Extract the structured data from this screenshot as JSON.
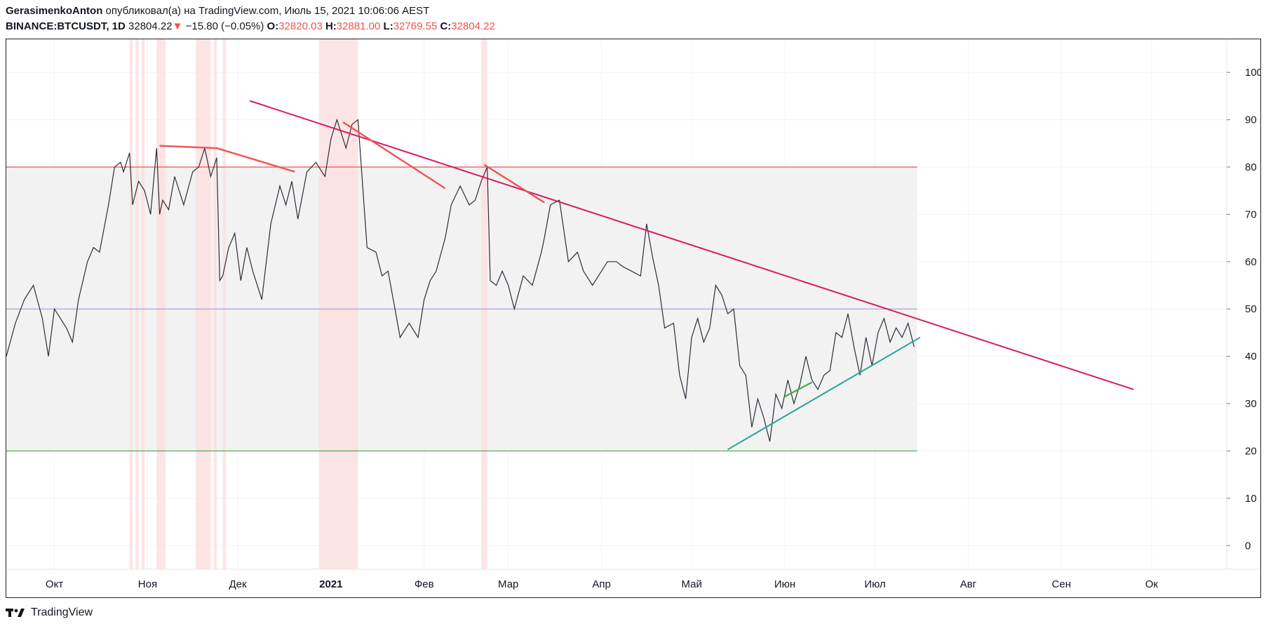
{
  "header": {
    "author": "GerasimenkoAnton",
    "published": "опубликовал(а) на TradingView.com, Июль 15, 2021 10:06:06 AEST",
    "symbol": "BINANCE:BTCUSDT, 1D",
    "price": "32804.22",
    "change_arrow": "▼",
    "change": "−15.80 (−0.05%)",
    "o_label": "O:",
    "o_value": "32820.03",
    "h_label": "H:",
    "h_value": "32881.00",
    "l_label": "L:",
    "l_value": "32769.55",
    "c_label": "C:",
    "c_value": "32804.22"
  },
  "footer": {
    "brand": "TradingView"
  },
  "colors": {
    "price_line": "#2a2e39",
    "downtrend": "#d81b60",
    "uptrend": "#26a69a",
    "divergence": "#ef5350",
    "bull_div": "#4caf50",
    "level_80": "#ef5350",
    "level_50": "#9fa8da",
    "level_20": "#4caf50",
    "band_fill": "#f2f2f2",
    "highlight": "#fde0e0"
  },
  "chart_data": {
    "type": "line",
    "title": "",
    "xlabel": "",
    "ylabel": "",
    "ylim": [
      -5,
      107
    ],
    "xlim": [
      "2020-09-15",
      "2021-10-26"
    ],
    "y_ticks": [
      0,
      10,
      20,
      30,
      40,
      50,
      60,
      70,
      80,
      90,
      100
    ],
    "x_ticks": [
      {
        "label": "Окт",
        "date": "2020-10-01"
      },
      {
        "label": "Ноя",
        "date": "2020-11-01"
      },
      {
        "label": "Дек",
        "date": "2020-12-01"
      },
      {
        "label": "2021",
        "date": "2021-01-01",
        "bold": true
      },
      {
        "label": "Фев",
        "date": "2021-02-01"
      },
      {
        "label": "Мар",
        "date": "2021-03-01"
      },
      {
        "label": "Апр",
        "date": "2021-04-01"
      },
      {
        "label": "Май",
        "date": "2021-05-01"
      },
      {
        "label": "Июн",
        "date": "2021-06-01"
      },
      {
        "label": "Июл",
        "date": "2021-07-01"
      },
      {
        "label": "Авг",
        "date": "2021-08-01"
      },
      {
        "label": "Сен",
        "date": "2021-09-01"
      },
      {
        "label": "Ок",
        "date": "2021-10-01"
      }
    ],
    "levels": [
      80,
      50,
      20
    ],
    "band": [
      20,
      80
    ],
    "band_end": "2021-07-15",
    "highlights": [
      [
        "2020-10-26",
        "2020-10-27"
      ],
      [
        "2020-10-28",
        "2020-10-29"
      ],
      [
        "2020-10-30",
        "2020-10-31"
      ],
      [
        "2020-11-04",
        "2020-11-07"
      ],
      [
        "2020-11-17",
        "2020-11-22"
      ],
      [
        "2020-11-23",
        "2020-11-24"
      ],
      [
        "2020-11-26",
        "2020-11-27"
      ],
      [
        "2020-12-28",
        "2021-01-10"
      ],
      [
        "2021-02-20",
        "2021-02-22"
      ]
    ],
    "x": [
      "2020-09-15",
      "2020-09-18",
      "2020-09-21",
      "2020-09-24",
      "2020-09-27",
      "2020-09-29",
      "2020-10-01",
      "2020-10-03",
      "2020-10-05",
      "2020-10-07",
      "2020-10-09",
      "2020-10-12",
      "2020-10-14",
      "2020-10-16",
      "2020-10-19",
      "2020-10-21",
      "2020-10-23",
      "2020-10-24",
      "2020-10-26",
      "2020-10-27",
      "2020-10-29",
      "2020-10-31",
      "2020-11-02",
      "2020-11-04",
      "2020-11-05",
      "2020-11-06",
      "2020-11-08",
      "2020-11-10",
      "2020-11-13",
      "2020-11-16",
      "2020-11-18",
      "2020-11-20",
      "2020-11-22",
      "2020-11-24",
      "2020-11-25",
      "2020-11-26",
      "2020-11-28",
      "2020-11-30",
      "2020-12-02",
      "2020-12-04",
      "2020-12-06",
      "2020-12-09",
      "2020-12-12",
      "2020-12-15",
      "2020-12-17",
      "2020-12-19",
      "2020-12-21",
      "2020-12-24",
      "2020-12-27",
      "2020-12-30",
      "2021-01-01",
      "2021-01-03",
      "2021-01-05",
      "2021-01-06",
      "2021-01-08",
      "2021-01-10",
      "2021-01-11",
      "2021-01-13",
      "2021-01-16",
      "2021-01-18",
      "2021-01-20",
      "2021-01-22",
      "2021-01-24",
      "2021-01-27",
      "2021-01-30",
      "2021-02-01",
      "2021-02-03",
      "2021-02-05",
      "2021-02-08",
      "2021-02-10",
      "2021-02-13",
      "2021-02-16",
      "2021-02-18",
      "2021-02-20",
      "2021-02-22",
      "2021-02-23",
      "2021-02-25",
      "2021-02-27",
      "2021-03-01",
      "2021-03-03",
      "2021-03-06",
      "2021-03-09",
      "2021-03-12",
      "2021-03-13",
      "2021-03-15",
      "2021-03-18",
      "2021-03-21",
      "2021-03-24",
      "2021-03-26",
      "2021-03-29",
      "2021-04-01",
      "2021-04-03",
      "2021-04-06",
      "2021-04-08",
      "2021-04-11",
      "2021-04-14",
      "2021-04-16",
      "2021-04-18",
      "2021-04-20",
      "2021-04-22",
      "2021-04-25",
      "2021-04-27",
      "2021-04-29",
      "2021-05-01",
      "2021-05-03",
      "2021-05-05",
      "2021-05-07",
      "2021-05-09",
      "2021-05-11",
      "2021-05-13",
      "2021-05-15",
      "2021-05-17",
      "2021-05-19",
      "2021-05-21",
      "2021-05-23",
      "2021-05-25",
      "2021-05-27",
      "2021-05-29",
      "2021-05-31",
      "2021-06-02",
      "2021-06-04",
      "2021-06-06",
      "2021-06-08",
      "2021-06-10",
      "2021-06-12",
      "2021-06-14",
      "2021-06-16",
      "2021-06-18",
      "2021-06-20",
      "2021-06-22",
      "2021-06-24",
      "2021-06-26",
      "2021-06-28",
      "2021-06-30",
      "2021-07-02",
      "2021-07-04",
      "2021-07-06",
      "2021-07-08",
      "2021-07-10",
      "2021-07-12",
      "2021-07-14"
    ],
    "series": [
      {
        "values": [
          40,
          47,
          52,
          55,
          48,
          40,
          50,
          48,
          46,
          43,
          52,
          60,
          63,
          62,
          72,
          80,
          81,
          79,
          83,
          72,
          77,
          75,
          70,
          84,
          70,
          73,
          71,
          78,
          72,
          79,
          80,
          84,
          78,
          82,
          56,
          57,
          63,
          66,
          56,
          63,
          58,
          52,
          68,
          76,
          72,
          77,
          69,
          79,
          81,
          78,
          86,
          90,
          86,
          84,
          89,
          90,
          81,
          63,
          62,
          57,
          58,
          51,
          44,
          47,
          44,
          52,
          56,
          58,
          65,
          72,
          76,
          72,
          73,
          77,
          80,
          56,
          55,
          58,
          55,
          50,
          57,
          55,
          62,
          65,
          72,
          73,
          60,
          62,
          58,
          55,
          58,
          60,
          60,
          59,
          58,
          57,
          68,
          61,
          55,
          46,
          47,
          36,
          31,
          44,
          48,
          43,
          46,
          55,
          53,
          49,
          50,
          38,
          36,
          25,
          31,
          27,
          22,
          32,
          29,
          35,
          30,
          34,
          40,
          35,
          33,
          36,
          37,
          45,
          44,
          49,
          42,
          36,
          44,
          38,
          45,
          48,
          43,
          46,
          44,
          47,
          42
        ]
      }
    ],
    "trendlines": [
      {
        "kind": "down",
        "from": [
          "2020-12-05",
          94
        ],
        "to": [
          "2021-09-25",
          33
        ]
      },
      {
        "kind": "up",
        "from": [
          "2021-05-13",
          20.3
        ],
        "to": [
          "2021-07-16",
          44
        ]
      },
      {
        "kind": "div",
        "from": [
          "2020-11-05",
          84.5
        ],
        "to": [
          "2020-11-24",
          84
        ]
      },
      {
        "kind": "div",
        "from": [
          "2020-11-24",
          84
        ],
        "to": [
          "2020-12-20",
          79
        ]
      },
      {
        "kind": "div",
        "from": [
          "2021-01-05",
          89.5
        ],
        "to": [
          "2021-02-08",
          75.5
        ]
      },
      {
        "kind": "div",
        "from": [
          "2021-02-21",
          80.5
        ],
        "to": [
          "2021-03-13",
          72.5
        ]
      },
      {
        "kind": "bull",
        "from": [
          "2021-06-01",
          31.5
        ],
        "to": [
          "2021-06-10",
          34.5
        ]
      }
    ]
  }
}
